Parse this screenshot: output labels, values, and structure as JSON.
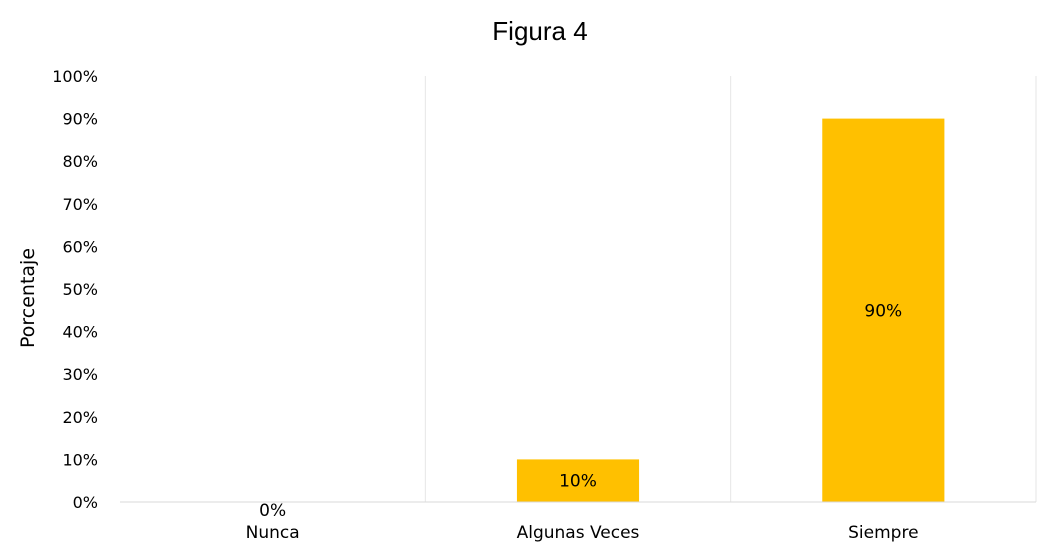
{
  "chart_data": {
    "type": "bar",
    "title": "Figura 4",
    "xlabel": "",
    "ylabel": "Porcentaje",
    "categories": [
      "Nunca",
      "Algunas Veces",
      "Siempre"
    ],
    "values": [
      0,
      10,
      90
    ],
    "data_labels": [
      "0%",
      "10%",
      "90%"
    ],
    "ylim": [
      0,
      100
    ],
    "y_ticks": [
      "0%",
      "10%",
      "20%",
      "30%",
      "40%",
      "50%",
      "60%",
      "70%",
      "80%",
      "90%",
      "100%"
    ],
    "grid": "vertical",
    "legend": "none",
    "colors": {
      "bar": "#FFC000",
      "grid": "#e6e6e6",
      "axis": "#d9d9d9"
    }
  }
}
